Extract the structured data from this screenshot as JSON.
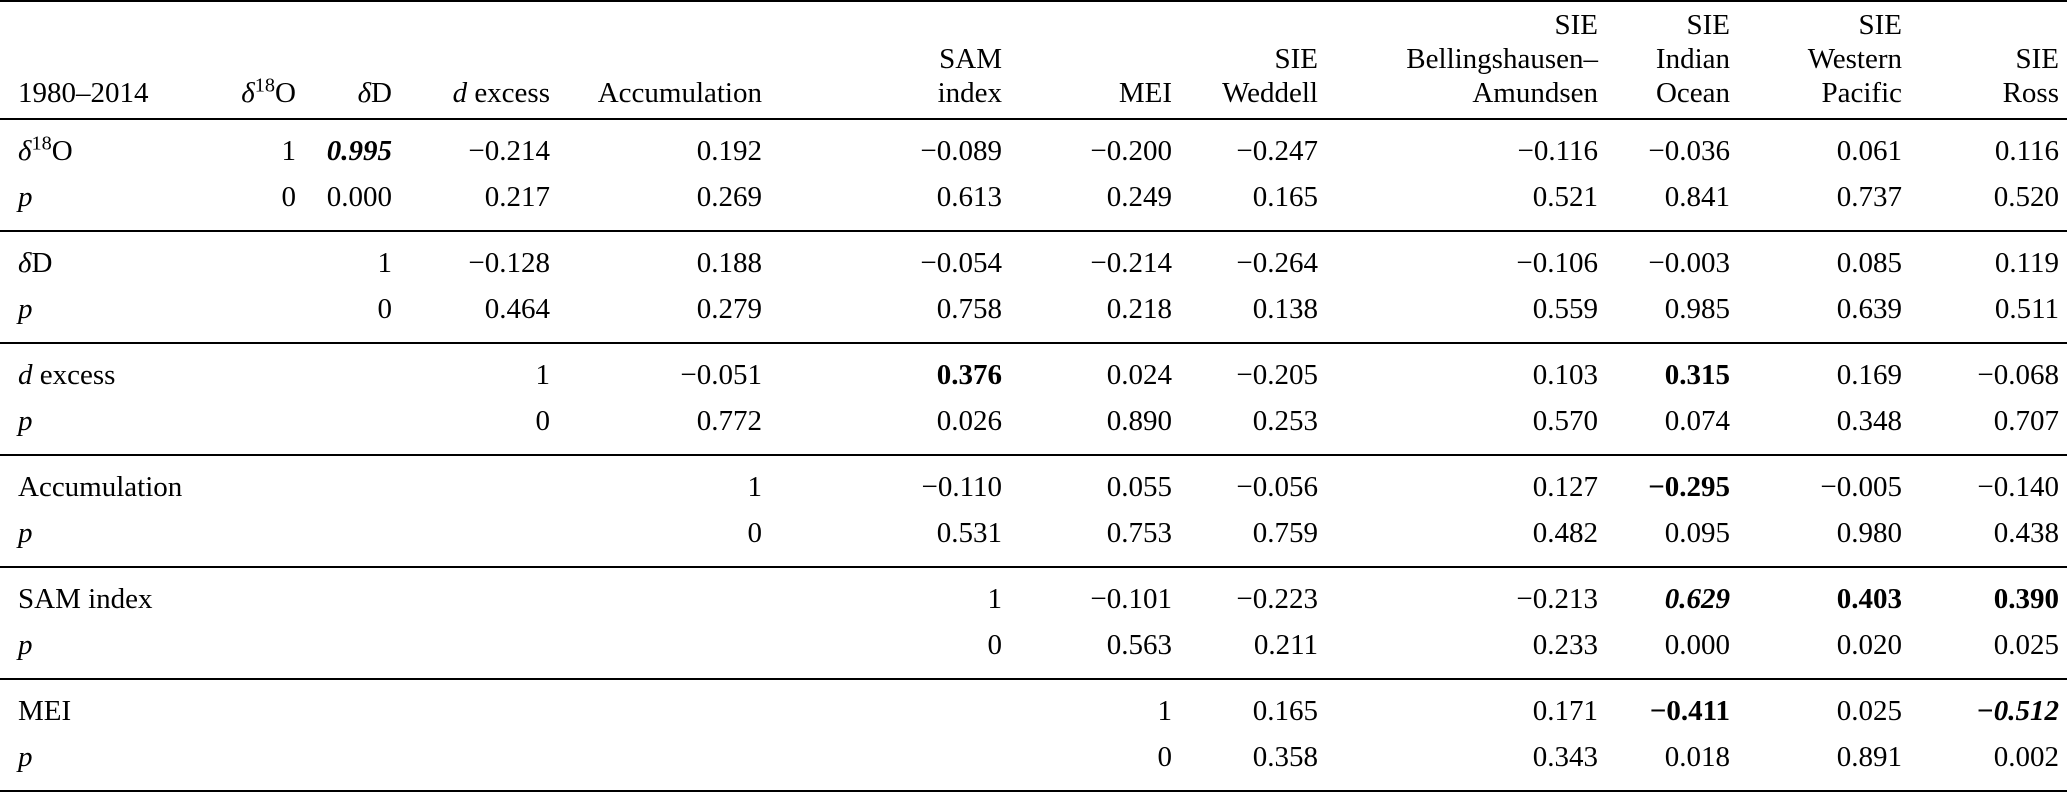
{
  "colors": {
    "background": "#ffffff",
    "text": "#000000",
    "rule": "#000000"
  },
  "table": {
    "period_label": "1980–2014",
    "p_row_label": "p",
    "column_headers": [
      {
        "id": "d18O",
        "lines": [
          "δ¹⁸O"
        ]
      },
      {
        "id": "dD",
        "lines": [
          "δD"
        ]
      },
      {
        "id": "d-excess",
        "lines": [
          "d excess"
        ]
      },
      {
        "id": "accumulation",
        "lines": [
          "Accumulation"
        ]
      },
      {
        "id": "sam-index",
        "lines": [
          "SAM",
          "index"
        ]
      },
      {
        "id": "mei",
        "lines": [
          "MEI"
        ]
      },
      {
        "id": "sie-weddell",
        "lines": [
          "SIE",
          "Weddell"
        ]
      },
      {
        "id": "sie-bellingshausen-amundsen",
        "lines": [
          "SIE",
          "Bellingshausen–",
          "Amundsen"
        ]
      },
      {
        "id": "sie-indian-ocean",
        "lines": [
          "SIE",
          "Indian",
          "Ocean"
        ]
      },
      {
        "id": "sie-western-pacific",
        "lines": [
          "SIE",
          "Western",
          "Pacific"
        ]
      },
      {
        "id": "sie-ross",
        "lines": [
          "SIE",
          "Ross"
        ]
      }
    ],
    "row_groups": [
      {
        "id": "d18O",
        "variable": "δ¹⁸O",
        "r": [
          "1",
          {
            "v": "0.995",
            "bold": true,
            "italic": true
          },
          "−0.214",
          "0.192",
          "−0.089",
          "−0.200",
          "−0.247",
          "−0.116",
          "−0.036",
          "0.061",
          "0.116"
        ],
        "p": [
          "0",
          "0.000",
          "0.217",
          "0.269",
          "0.613",
          "0.249",
          "0.165",
          "0.521",
          "0.841",
          "0.737",
          "0.520"
        ]
      },
      {
        "id": "dD",
        "variable": "δD",
        "r": [
          "",
          "1",
          "−0.128",
          "0.188",
          "−0.054",
          "−0.214",
          "−0.264",
          "−0.106",
          "−0.003",
          "0.085",
          "0.119"
        ],
        "p": [
          "",
          "0",
          "0.464",
          "0.279",
          "0.758",
          "0.218",
          "0.138",
          "0.559",
          "0.985",
          "0.639",
          "0.511"
        ]
      },
      {
        "id": "d-excess",
        "variable": "d excess",
        "r": [
          "",
          "",
          "1",
          "−0.051",
          {
            "v": "0.376",
            "bold": true
          },
          "0.024",
          "−0.205",
          "0.103",
          {
            "v": "0.315",
            "bold": true
          },
          "0.169",
          "−0.068"
        ],
        "p": [
          "",
          "",
          "0",
          "0.772",
          "0.026",
          "0.890",
          "0.253",
          "0.570",
          "0.074",
          "0.348",
          "0.707"
        ]
      },
      {
        "id": "accumulation",
        "variable": "Accumulation",
        "r": [
          "",
          "",
          "",
          "1",
          "−0.110",
          "0.055",
          "−0.056",
          "0.127",
          {
            "v": "−0.295",
            "bold": true
          },
          "−0.005",
          "−0.140"
        ],
        "p": [
          "",
          "",
          "",
          "0",
          "0.531",
          "0.753",
          "0.759",
          "0.482",
          "0.095",
          "0.980",
          "0.438"
        ]
      },
      {
        "id": "sam-index",
        "variable": "SAM index",
        "r": [
          "",
          "",
          "",
          "",
          "1",
          "−0.101",
          "−0.223",
          "−0.213",
          {
            "v": "0.629",
            "bold": true,
            "italic": true
          },
          {
            "v": "0.403",
            "bold": true
          },
          {
            "v": "0.390",
            "bold": true
          }
        ],
        "p": [
          "",
          "",
          "",
          "",
          "0",
          "0.563",
          "0.211",
          "0.233",
          "0.000",
          "0.020",
          "0.025"
        ]
      },
      {
        "id": "mei",
        "variable": "MEI",
        "r": [
          "",
          "",
          "",
          "",
          "",
          "1",
          "0.165",
          "0.171",
          {
            "v": "−0.411",
            "bold": true
          },
          "0.025",
          {
            "v": "−0.512",
            "bold": true,
            "italic": true
          }
        ],
        "p": [
          "",
          "",
          "",
          "",
          "",
          "0",
          "0.358",
          "0.343",
          "0.018",
          "0.891",
          "0.002"
        ]
      }
    ]
  }
}
